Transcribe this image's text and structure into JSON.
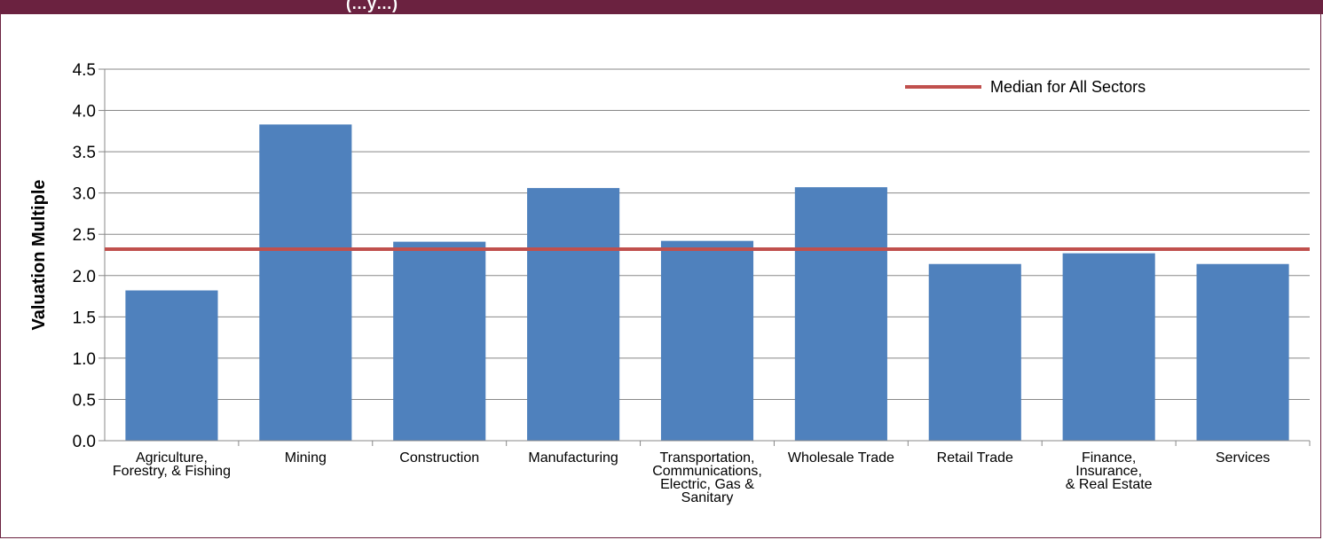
{
  "header": {
    "band_text": "(…y…)"
  },
  "chart_data": {
    "type": "bar",
    "categories": [
      [
        "Agriculture,",
        "Forestry, & Fishing"
      ],
      [
        "Mining"
      ],
      [
        "Construction"
      ],
      [
        "Manufacturing"
      ],
      [
        "Transportation,",
        "Communications,",
        "Electric, Gas &",
        "Sanitary"
      ],
      [
        "Wholesale Trade"
      ],
      [
        "Retail Trade"
      ],
      [
        "Finance,",
        "Insurance,",
        "& Real Estate"
      ],
      [
        "Services"
      ]
    ],
    "values": [
      1.82,
      3.83,
      2.41,
      3.06,
      2.42,
      3.07,
      2.14,
      2.27,
      2.14
    ],
    "reference_line": {
      "name": "Median for All Sectors",
      "value": 2.32
    },
    "title": "",
    "xlabel": "",
    "ylabel": "Valuation Multiple",
    "ylim": [
      0,
      4.5
    ],
    "yticks": [
      "0.0",
      "0.5",
      "1.0",
      "1.5",
      "2.0",
      "2.5",
      "3.0",
      "3.5",
      "4.0",
      "4.5"
    ],
    "grid": true,
    "legend_position": "top-right",
    "colors": {
      "bar": "#4f81bd",
      "median": "#c0504d",
      "grid": "#888888"
    }
  }
}
